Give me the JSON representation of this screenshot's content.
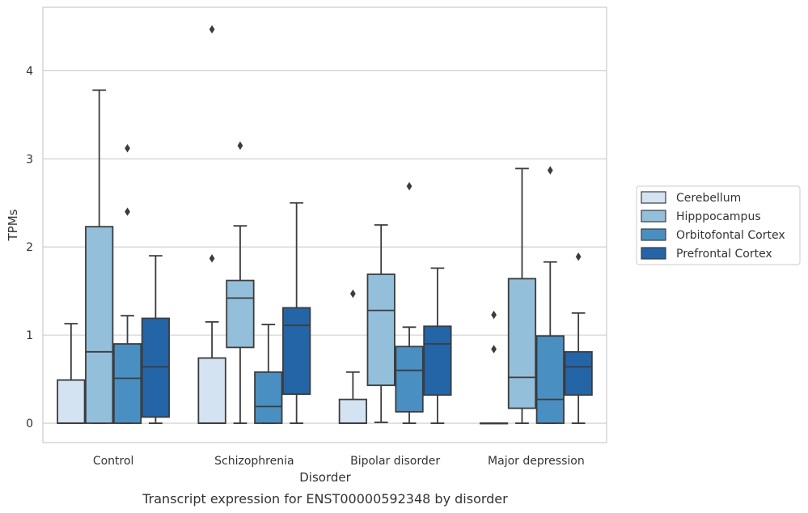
{
  "chart_data": {
    "type": "box",
    "title": "Transcript expression for ENST00000592348 by disorder",
    "xlabel": "Disorder",
    "ylabel": "TPMs",
    "ylim": [
      -0.22,
      4.72
    ],
    "yticks": [
      0,
      1,
      2,
      3,
      4
    ],
    "grid": "horizontal",
    "legend_position": "right",
    "categories": [
      "Control",
      "Schizophrenia",
      "Bipolar disorder",
      "Major depression"
    ],
    "series": [
      {
        "name": "Cerebellum",
        "color": "#d4e3f2",
        "boxes": [
          {
            "whislo": 0,
            "q1": 0,
            "median": 0,
            "q3": 0.49,
            "whishi": 1.13,
            "fliers": []
          },
          {
            "whislo": 0,
            "q1": 0,
            "median": 0,
            "q3": 0.74,
            "whishi": 1.15,
            "fliers": [
              1.87,
              4.47
            ]
          },
          {
            "whislo": 0,
            "q1": 0,
            "median": 0,
            "q3": 0.27,
            "whishi": 0.58,
            "fliers": [
              1.47
            ]
          },
          {
            "whislo": 0,
            "q1": 0,
            "median": 0,
            "q3": 0,
            "whishi": 0,
            "fliers": [
              0.84,
              1.23
            ]
          }
        ]
      },
      {
        "name": "Hipppocampus",
        "color": "#93bfdb",
        "boxes": [
          {
            "whislo": 0,
            "q1": 0,
            "median": 0.81,
            "q3": 2.23,
            "whishi": 3.78,
            "fliers": []
          },
          {
            "whislo": 0,
            "q1": 0.86,
            "median": 1.42,
            "q3": 1.62,
            "whishi": 2.24,
            "fliers": [
              3.15
            ]
          },
          {
            "whislo": 0.01,
            "q1": 0.43,
            "median": 1.28,
            "q3": 1.69,
            "whishi": 2.25,
            "fliers": []
          },
          {
            "whislo": 0,
            "q1": 0.17,
            "median": 0.52,
            "q3": 1.64,
            "whishi": 2.89,
            "fliers": []
          }
        ]
      },
      {
        "name": "Orbitofontal Cortex",
        "color": "#4a8fc1",
        "boxes": [
          {
            "whislo": 0,
            "q1": 0,
            "median": 0.51,
            "q3": 0.9,
            "whishi": 1.22,
            "fliers": [
              2.4,
              3.12
            ]
          },
          {
            "whislo": 0,
            "q1": 0,
            "median": 0.19,
            "q3": 0.58,
            "whishi": 1.12,
            "fliers": []
          },
          {
            "whislo": 0,
            "q1": 0.13,
            "median": 0.6,
            "q3": 0.87,
            "whishi": 1.09,
            "fliers": [
              2.69
            ]
          },
          {
            "whislo": 0,
            "q1": 0,
            "median": 0.27,
            "q3": 0.99,
            "whishi": 1.83,
            "fliers": [
              2.87
            ]
          }
        ]
      },
      {
        "name": "Prefrontal Cortex",
        "color": "#2365a6",
        "boxes": [
          {
            "whislo": 0,
            "q1": 0.07,
            "median": 0.64,
            "q3": 1.19,
            "whishi": 1.9,
            "fliers": []
          },
          {
            "whislo": 0,
            "q1": 0.33,
            "median": 1.11,
            "q3": 1.31,
            "whishi": 2.5,
            "fliers": []
          },
          {
            "whislo": 0,
            "q1": 0.32,
            "median": 0.9,
            "q3": 1.1,
            "whishi": 1.76,
            "fliers": []
          },
          {
            "whislo": 0,
            "q1": 0.32,
            "median": 0.64,
            "q3": 0.81,
            "whishi": 1.25,
            "fliers": [
              1.89
            ]
          }
        ]
      }
    ]
  }
}
